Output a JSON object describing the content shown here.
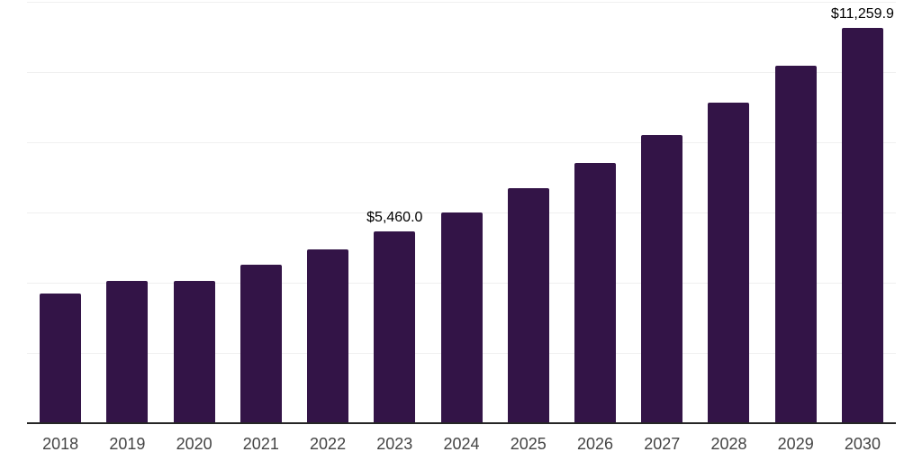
{
  "chart": {
    "background": "#ffffff",
    "bar_color": "#331447",
    "grid_color": "#f0f0f0",
    "axis_line_color": "#262626",
    "tick_label_color": "#444444",
    "data_label_color": "#000000"
  },
  "chart_data": {
    "type": "bar",
    "title": "",
    "xlabel": "",
    "ylabel": "",
    "categories": [
      "2018",
      "2019",
      "2020",
      "2021",
      "2022",
      "2023",
      "2024",
      "2025",
      "2026",
      "2027",
      "2028",
      "2029",
      "2030"
    ],
    "values": [
      3700,
      4060,
      4050,
      4520,
      4950,
      5460,
      6010,
      6700,
      7420,
      8210,
      9140,
      10190,
      11259.9
    ],
    "data_labels": [
      "",
      "",
      "",
      "",
      "",
      "$5,460.0",
      "",
      "",
      "",
      "",
      "",
      "",
      "$11,259.9"
    ],
    "ylim": [
      0,
      12000
    ],
    "gridline_step": 2000,
    "grid": "horizontal",
    "legend": "none",
    "y_axis_tick_labels_visible": false
  }
}
